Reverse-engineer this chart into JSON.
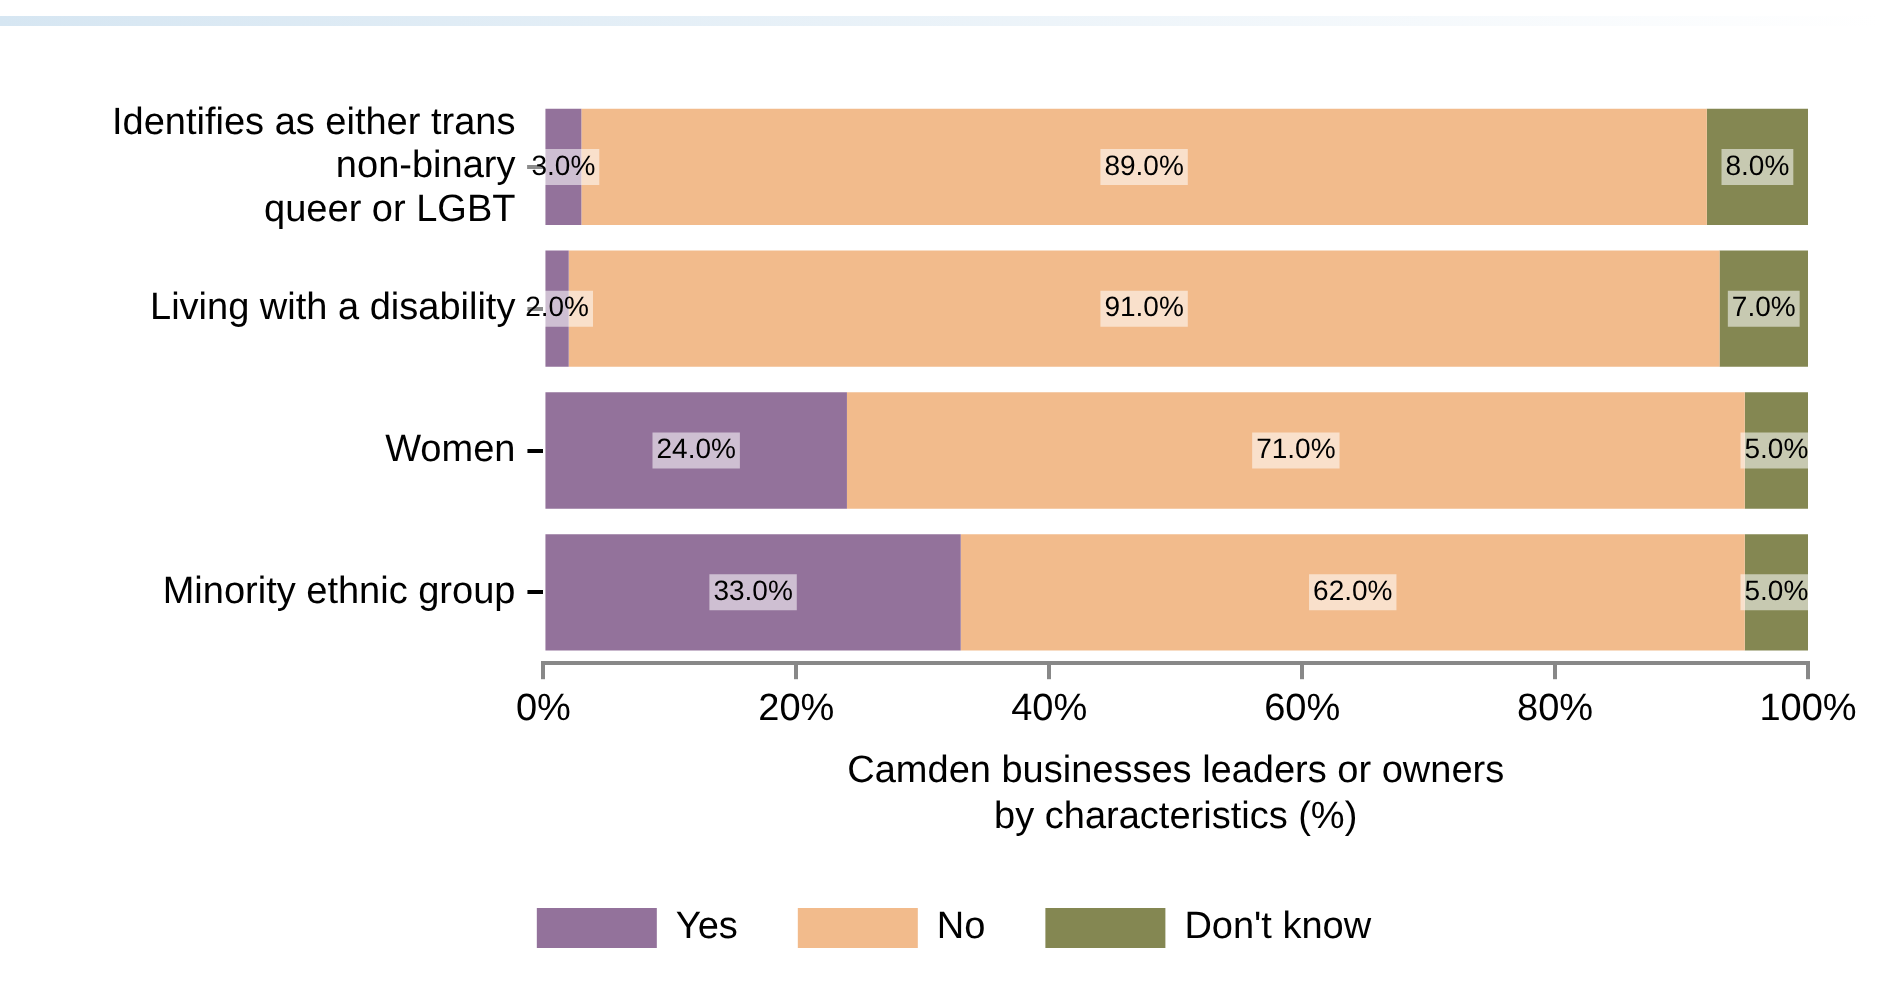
{
  "chart_data": {
    "type": "bar",
    "orientation": "horizontal",
    "stacked": true,
    "grid": false,
    "legend": "bottom",
    "xlabel": "Camden businesses leaders or owners\nby characteristics (%)",
    "categories": [
      "Identifies as either trans\nnon-binary\nqueer or LGBT",
      "Living with a disability",
      "Women",
      "Minority ethnic group"
    ],
    "xlim": [
      0,
      100
    ],
    "xticks": [
      {
        "value": 0,
        "label": "0%"
      },
      {
        "value": 20,
        "label": "20%"
      },
      {
        "value": 40,
        "label": "40%"
      },
      {
        "value": 60,
        "label": "60%"
      },
      {
        "value": 80,
        "label": "80%"
      },
      {
        "value": 100,
        "label": "100%"
      }
    ],
    "series": [
      {
        "name": "Yes",
        "color": "#93729b",
        "values": [
          3,
          2,
          24,
          33
        ],
        "value_labels": [
          "3.0%",
          "2.0%",
          "24.0%",
          "33.0%"
        ]
      },
      {
        "name": "No",
        "color": "#f2bb8c",
        "values": [
          89,
          91,
          71,
          62
        ],
        "value_labels": [
          "89.0%",
          "91.0%",
          "71.0%",
          "62.0%"
        ]
      },
      {
        "name": "Don't know",
        "color": "#848752",
        "values": [
          8,
          7,
          5,
          5
        ],
        "value_labels": [
          "8.0%",
          "7.0%",
          "5.0%",
          "5.0%"
        ]
      }
    ]
  }
}
